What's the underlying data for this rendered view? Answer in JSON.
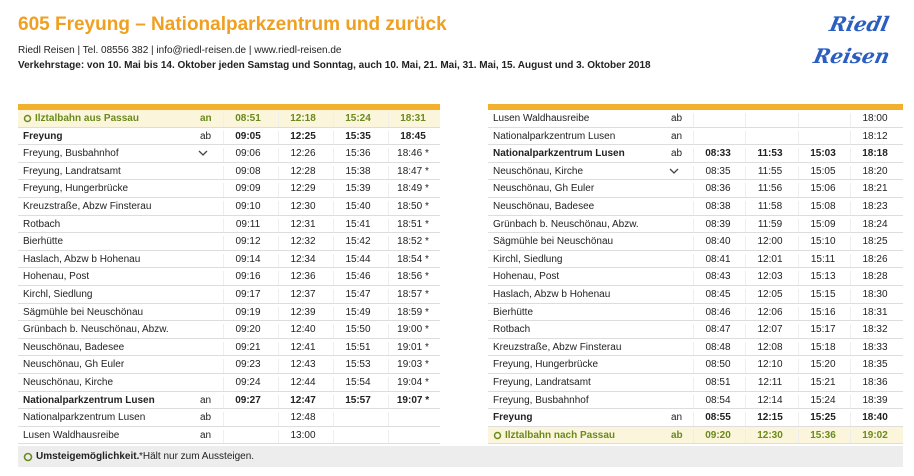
{
  "header": {
    "title": "605 Freyung – Nationalparkzentrum und zurück",
    "contact": "Riedl Reisen | Tel. 08556 382 | info@riedl-reisen.de | www.riedl-reisen.de",
    "days": "Verkehrstage: von 10. Mai bis 14. Oktober jeden Samstag und Sonntag, auch 10. Mai, 21. Mai, 31. Mai, 15. August und 3. Oktober 2018"
  },
  "logo": [
    "Riedl",
    "Reisen"
  ],
  "left": {
    "rows": [
      [
        "Ilztalbahn aus Passau",
        "an",
        "08:51",
        "12:18",
        "15:24",
        "18:31"
      ],
      [
        "Freyung",
        "ab",
        "09:05",
        "12:25",
        "15:35",
        "18:45"
      ],
      [
        "Freyung, Busbahnhof",
        null,
        "09:06",
        "12:26",
        "15:36",
        "18:46 *"
      ],
      [
        "Freyung, Landratsamt",
        null,
        "09:08",
        "12:28",
        "15:38",
        "18:47 *"
      ],
      [
        "Freyung, Hungerbrücke",
        null,
        "09:09",
        "12:29",
        "15:39",
        "18:49 *"
      ],
      [
        "Kreuzstraße, Abzw Finsterau",
        null,
        "09:10",
        "12:30",
        "15:40",
        "18:50 *"
      ],
      [
        "Rotbach",
        null,
        "09:11",
        "12:31",
        "15:41",
        "18:51 *"
      ],
      [
        "Bierhütte",
        null,
        "09:12",
        "12:32",
        "15:42",
        "18:52 *"
      ],
      [
        "Haslach, Abzw b Hohenau",
        null,
        "09:14",
        "12:34",
        "15:44",
        "18:54 *"
      ],
      [
        "Hohenau, Post",
        null,
        "09:16",
        "12:36",
        "15:46",
        "18:56 *"
      ],
      [
        "Kirchl, Siedlung",
        null,
        "09:17",
        "12:37",
        "15:47",
        "18:57 *"
      ],
      [
        "Sägmühle bei Neuschönau",
        null,
        "09:19",
        "12:39",
        "15:49",
        "18:59 *"
      ],
      [
        "Grünbach b. Neuschönau, Abzw.",
        null,
        "09:20",
        "12:40",
        "15:50",
        "19:00 *"
      ],
      [
        "Neuschönau, Badesee",
        null,
        "09:21",
        "12:41",
        "15:51",
        "19:01 *"
      ],
      [
        "Neuschönau, Gh Euler",
        null,
        "09:23",
        "12:43",
        "15:53",
        "19:03 *"
      ],
      [
        "Neuschönau, Kirche",
        null,
        "09:24",
        "12:44",
        "15:54",
        "19:04 *"
      ],
      [
        "Nationalparkzentrum Lusen",
        "an",
        "09:27",
        "12:47",
        "15:57",
        "19:07 *"
      ],
      [
        "Nationalparkzentrum Lusen",
        "ab",
        null,
        "12:48",
        null,
        null
      ],
      [
        "Lusen Waldhausreibe",
        "an",
        null,
        "13:00",
        null,
        null
      ]
    ]
  },
  "right": {
    "rows": [
      [
        "Lusen Waldhausreibe",
        "ab",
        null,
        null,
        null,
        "18:00"
      ],
      [
        "Nationalparkzentrum Lusen",
        "an",
        null,
        null,
        null,
        "18:12"
      ],
      [
        "Nationalparkzentrum Lusen",
        "ab",
        "08:33",
        "11:53",
        "15:03",
        "18:18"
      ],
      [
        "Neuschönau, Kirche",
        null,
        "08:35",
        "11:55",
        "15:05",
        "18:20"
      ],
      [
        "Neuschönau, Gh Euler",
        null,
        "08:36",
        "11:56",
        "15:06",
        "18:21"
      ],
      [
        "Neuschönau, Badesee",
        null,
        "08:38",
        "11:58",
        "15:08",
        "18:23"
      ],
      [
        "Grünbach b. Neuschönau, Abzw.",
        null,
        "08:39",
        "11:59",
        "15:09",
        "18:24"
      ],
      [
        "Sägmühle bei Neuschönau",
        null,
        "08:40",
        "12:00",
        "15:10",
        "18:25"
      ],
      [
        "Kirchl, Siedlung",
        null,
        "08:41",
        "12:01",
        "15:11",
        "18:26"
      ],
      [
        "Hohenau, Post",
        null,
        "08:43",
        "12:03",
        "15:13",
        "18:28"
      ],
      [
        "Haslach, Abzw b Hohenau",
        null,
        "08:45",
        "12:05",
        "15:15",
        "18:30"
      ],
      [
        "Bierhütte",
        null,
        "08:46",
        "12:06",
        "15:16",
        "18:31"
      ],
      [
        "Rotbach",
        null,
        "08:47",
        "12:07",
        "15:17",
        "18:32"
      ],
      [
        "Kreuzstraße, Abzw Finsterau",
        null,
        "08:48",
        "12:08",
        "15:18",
        "18:33"
      ],
      [
        "Freyung, Hungerbrücke",
        null,
        "08:50",
        "12:10",
        "15:20",
        "18:35"
      ],
      [
        "Freyung, Landratsamt",
        null,
        "08:51",
        "12:11",
        "15:21",
        "18:36"
      ],
      [
        "Freyung, Busbahnhof",
        null,
        "08:54",
        "12:14",
        "15:24",
        "18:39"
      ],
      [
        "Freyung",
        "an",
        "08:55",
        "12:15",
        "15:25",
        "18:40"
      ],
      [
        "Ilztalbahn nach Passau",
        "ab",
        "09:20",
        "12:30",
        "15:36",
        "19:02"
      ]
    ]
  },
  "footer": {
    "transfer": "Umsteigemöglichkeit.",
    "note": "*Hält nur zum Aussteigen."
  }
}
